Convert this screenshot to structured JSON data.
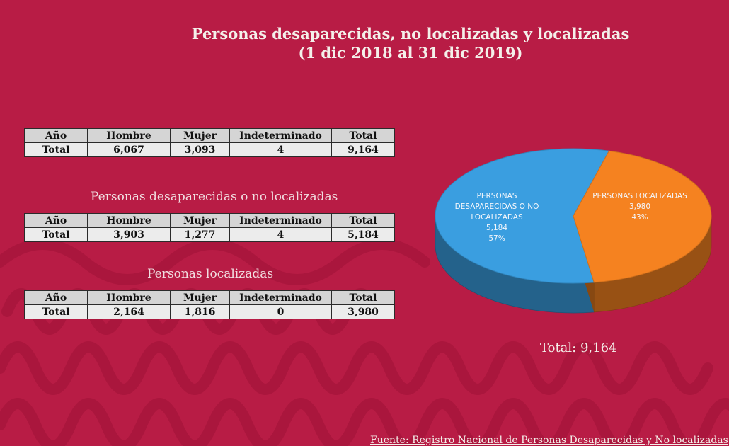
{
  "title_line1": "Personas desaparecidas, no localizadas y localizadas",
  "title_line2": "(1 dic 2018 al 31 dic 2019)",
  "tables": [
    {
      "caption": "",
      "headers": [
        "Año",
        "Hombre",
        "Mujer",
        "Indeterminado",
        "Total"
      ],
      "row": [
        "Total",
        "6,067",
        "3,093",
        "4",
        "9,164"
      ]
    },
    {
      "caption": "Personas desaparecidas o no localizadas",
      "headers": [
        "Año",
        "Hombre",
        "Mujer",
        "Indeterminado",
        "Total"
      ],
      "row": [
        "Total",
        "3,903",
        "1,277",
        "4",
        "5,184"
      ]
    },
    {
      "caption": "Personas localizadas",
      "headers": [
        "Año",
        "Hombre",
        "Mujer",
        "Indeterminado",
        "Total"
      ],
      "row": [
        "Total",
        "2,164",
        "1,816",
        "0",
        "3,980"
      ]
    }
  ],
  "chart_data": {
    "type": "pie",
    "style": "3d",
    "slices": [
      {
        "label_lines": [
          "PERSONAS",
          "DESAPARECIDAS O NO",
          "LOCALIZADAS"
        ],
        "value": 5184,
        "value_text": "5,184",
        "percent_text": "57%",
        "color": "#3a9ee0"
      },
      {
        "label_lines": [
          "PERSONAS LOCALIZADAS"
        ],
        "value": 3980,
        "value_text": "3,980",
        "percent_text": "43%",
        "color": "#f58220"
      }
    ],
    "total_label": "Total: 9,164"
  },
  "source": "Fuente: Registro Nacional de Personas Desaparecidas y No localizadas"
}
